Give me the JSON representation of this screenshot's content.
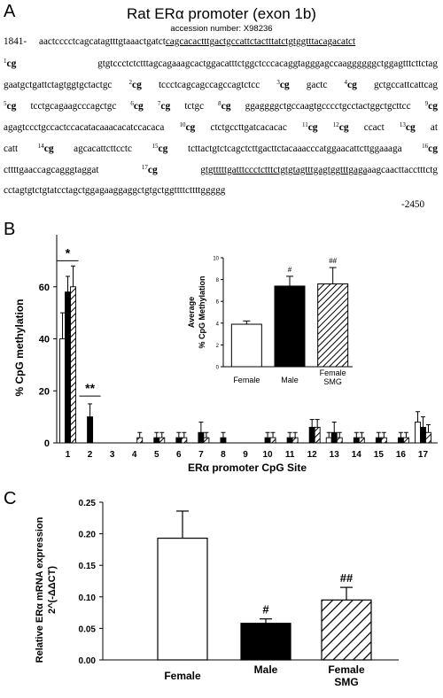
{
  "panel_a": {
    "letter": "A",
    "title": "Rat ERα promoter (exon 1b)",
    "accession": "accession number: X98236",
    "start_label": "1841-",
    "end_label": "-2450",
    "lines": [
      [
        {
          "t": "aactcccctcagcatagtttgtaaactgatct"
        },
        {
          "t": "cagcacactttgactgccattctactttatctgtggtttacagacatct",
          "u": true
        }
      ],
      [
        {
          "sup": "1"
        },
        {
          "cg": "cg"
        },
        {
          "t": " gtgtccctctctttagcagaaagcactggacatttctggctcccacaggtagggagccaaggggggctggagtttcttctag"
        }
      ],
      [
        {
          "t": "gaatgctgattctagtggtgctactgc "
        },
        {
          "sup": "2"
        },
        {
          "cg": "cg"
        },
        {
          "t": " tccctcagcagccagccagtctcc "
        },
        {
          "sup": "3"
        },
        {
          "cg": "cg"
        },
        {
          "t": " gactc "
        },
        {
          "sup": "4"
        },
        {
          "cg": "cg"
        },
        {
          "t": " gctgccattcattcag"
        }
      ],
      [
        {
          "sup": "5"
        },
        {
          "cg": "cg"
        },
        {
          "t": " tcctgcagaagcccagctgc "
        },
        {
          "sup": "6"
        },
        {
          "cg": "cg"
        },
        {
          "t": " "
        },
        {
          "sup": "7"
        },
        {
          "cg": "cg"
        },
        {
          "t": " tctgc "
        },
        {
          "sup": "8"
        },
        {
          "cg": "cg"
        },
        {
          "t": " ggaggggctgccaagtgcccctgcctactggctgcttcc "
        },
        {
          "sup": "9"
        },
        {
          "cg": "cg"
        }
      ],
      [
        {
          "t": "agagtccctgccactccacatacaaacacatccacaca "
        },
        {
          "sup": "10"
        },
        {
          "cg": "cg"
        },
        {
          "t": " ctctgccttgatcacacac "
        },
        {
          "sup": "11"
        },
        {
          "cg": "cg"
        },
        {
          "t": " "
        },
        {
          "sup": "12"
        },
        {
          "cg": "cg"
        },
        {
          "t": " ccact "
        },
        {
          "sup": "13"
        },
        {
          "cg": "cg"
        },
        {
          "t": " at"
        }
      ],
      [
        {
          "t": "catt "
        },
        {
          "sup": "14"
        },
        {
          "cg": "cg"
        },
        {
          "t": " agcacattcttcctc "
        },
        {
          "sup": "15"
        },
        {
          "cg": "cg"
        },
        {
          "t": " tcttactgtctcagctcttgacttctacaaacccatggaacattcttggaaaga "
        },
        {
          "sup": "16"
        },
        {
          "cg": "cg"
        }
      ],
      [
        {
          "t": "cttttgaaccagcagggtaggat "
        },
        {
          "sup": "17"
        },
        {
          "cg": "cg"
        },
        {
          "t": " "
        },
        {
          "t": "gtgtttttgatttccctctttctgtgtagtttgagtggtttgaga",
          "u": true
        },
        {
          "t": "aagcaacttacctttctg"
        }
      ],
      [
        {
          "t": "cctagtgtctgtatcctagctggagaaggaggctgtgctggttttcttttggggg"
        }
      ]
    ]
  },
  "panel_b": {
    "letter": "B",
    "ylabel": "% CpG methylation",
    "xlabel": "ERα promoter CpG Site",
    "sig_star": "*",
    "sig_double_star": "**",
    "inset": {
      "ylabel_line1": "Average",
      "ylabel_line2": "% CpG Methylation",
      "hash_male": "#",
      "hash_smg": "##"
    }
  },
  "panel_c": {
    "letter": "C",
    "ylabel_line1": "Relative ERα mRNA expression",
    "ylabel_line2": "2^(-ΔΔCT)",
    "hash_male": "#",
    "hash_smg": "##"
  },
  "chart_data": [
    {
      "type": "bar",
      "panel": "B",
      "categories": [
        "1",
        "2",
        "3",
        "4",
        "5",
        "6",
        "7",
        "8",
        "9",
        "10",
        "11",
        "12",
        "13",
        "14",
        "15",
        "16",
        "17"
      ],
      "ylim": [
        0,
        80
      ],
      "yticks": [
        0,
        20,
        40,
        60
      ],
      "xlabel": "ERα promoter CpG Site",
      "ylabel": "% CpG methylation",
      "series": [
        {
          "name": "Female",
          "values": [
            40,
            0,
            0,
            0,
            0,
            0,
            0,
            0,
            0,
            0,
            0,
            0,
            2,
            0,
            0,
            0,
            8
          ],
          "errors": [
            10,
            0,
            0,
            0,
            0,
            0,
            0,
            0,
            0,
            0,
            0,
            0,
            2,
            0,
            0,
            0,
            4
          ]
        },
        {
          "name": "Male",
          "values": [
            58,
            10,
            0,
            0,
            2,
            2,
            4,
            2,
            0,
            2,
            2,
            6,
            4,
            2,
            2,
            2,
            6
          ],
          "errors": [
            6,
            5,
            0,
            0,
            2,
            2,
            4,
            2,
            0,
            2,
            2,
            3,
            4,
            2,
            2,
            2,
            4
          ]
        },
        {
          "name": "Female SMG",
          "values": [
            60,
            0,
            0,
            2,
            2,
            2,
            2,
            0,
            0,
            2,
            2,
            6,
            2,
            2,
            2,
            2,
            4
          ],
          "errors": [
            8,
            0,
            0,
            2,
            2,
            2,
            2,
            0,
            0,
            2,
            2,
            3,
            2,
            2,
            2,
            2,
            3
          ]
        }
      ]
    },
    {
      "type": "bar",
      "panel": "B-inset",
      "categories": [
        "Female",
        "Male",
        "Female SMG"
      ],
      "values": [
        3.9,
        7.4,
        7.6
      ],
      "errors": [
        0.3,
        0.9,
        1.5
      ],
      "ylim": [
        0,
        10
      ],
      "yticks": [
        0,
        2,
        4,
        6,
        8,
        10
      ],
      "ylabel": "Average % CpG Methylation",
      "fills": [
        "white",
        "black",
        "hatch"
      ]
    },
    {
      "type": "bar",
      "panel": "C",
      "categories": [
        "Female",
        "Male",
        "Female SMG"
      ],
      "values": [
        0.193,
        0.058,
        0.095
      ],
      "errors": [
        0.043,
        0.007,
        0.02
      ],
      "ylim": [
        0,
        0.25
      ],
      "yticks": [
        0.0,
        0.05,
        0.1,
        0.15,
        0.2,
        0.25
      ],
      "ylabel": "Relative ERα mRNA expression 2^(-ΔΔCT)",
      "fills": [
        "white",
        "black",
        "hatch"
      ]
    }
  ]
}
